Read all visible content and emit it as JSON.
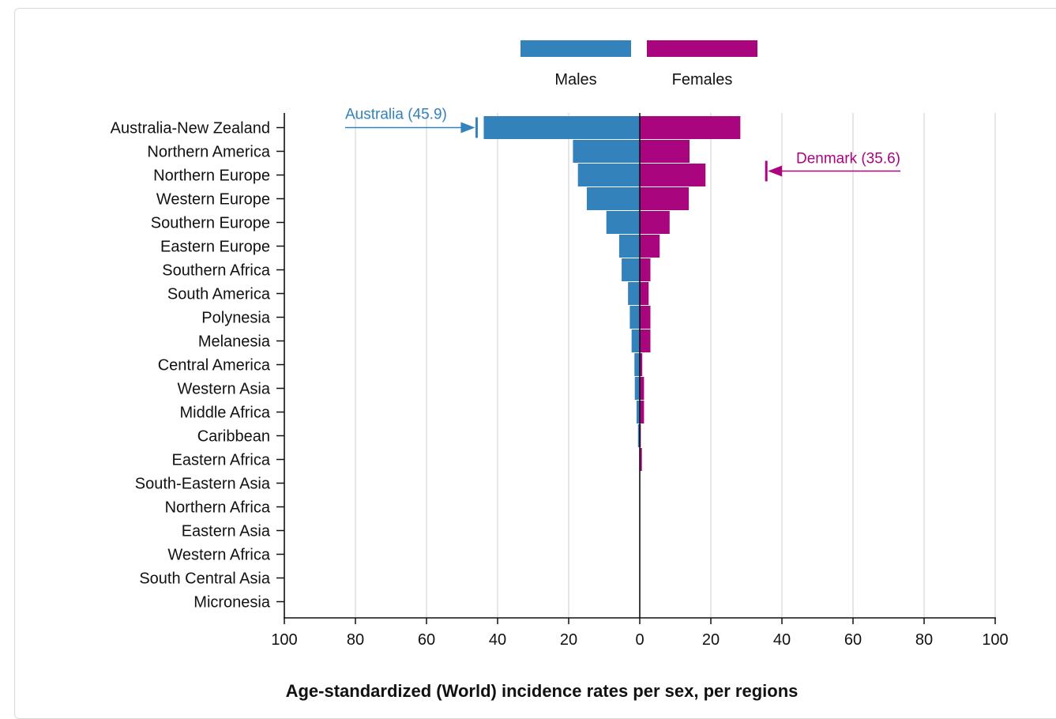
{
  "chart_data": {
    "type": "bar",
    "orientation": "horizontal",
    "layout": "population-pyramid",
    "title": "Age-standardized (World) incidence rates per sex, per regions",
    "xlabel": "",
    "ylabel": "",
    "xlim": [
      -100,
      100
    ],
    "x_ticks": [
      -100,
      -80,
      -60,
      -40,
      -20,
      0,
      20,
      40,
      60,
      80,
      100
    ],
    "x_tick_labels": [
      "100",
      "80",
      "60",
      "40",
      "20",
      "0",
      "20",
      "40",
      "60",
      "80",
      "100"
    ],
    "grid": true,
    "legend_position": "top-center",
    "categories": [
      "Australia-New Zealand",
      "Northern America",
      "Northern Europe",
      "Western Europe",
      "Southern Europe",
      "Eastern Europe",
      "Southern Africa",
      "South America",
      "Polynesia",
      "Melanesia",
      "Central America",
      "Western Asia",
      "Middle Africa",
      "Caribbean",
      "Eastern Africa",
      "South-Eastern Asia",
      "Northern Africa",
      "Eastern Asia",
      "Western Africa",
      "South Central Asia",
      "Micronesia"
    ],
    "series": [
      {
        "name": "Males",
        "color": "#3382bb",
        "side": "left",
        "values": [
          43.9,
          18.8,
          17.4,
          14.9,
          9.4,
          5.8,
          5.1,
          3.3,
          2.8,
          2.3,
          1.5,
          1.4,
          0.9,
          0.5,
          0.0,
          0.0,
          0.0,
          0.0,
          0.0,
          0.0,
          0.0
        ]
      },
      {
        "name": "Females",
        "color": "#a8057f",
        "side": "right",
        "values": [
          28.3,
          14.0,
          18.5,
          13.8,
          8.4,
          5.6,
          3.0,
          2.5,
          3.0,
          3.0,
          0.7,
          1.2,
          1.2,
          0.3,
          0.6,
          0.0,
          0.0,
          0.0,
          0.0,
          0.0,
          0.0
        ]
      }
    ],
    "annotations": [
      {
        "label": "Australia (45.9)",
        "value": -45.9,
        "category_index": 0,
        "series": "Males",
        "color": "#3382bb"
      },
      {
        "label": "Denmark (35.6)",
        "value": 35.6,
        "category_index": 2,
        "series": "Females",
        "color": "#a8057f"
      }
    ]
  }
}
